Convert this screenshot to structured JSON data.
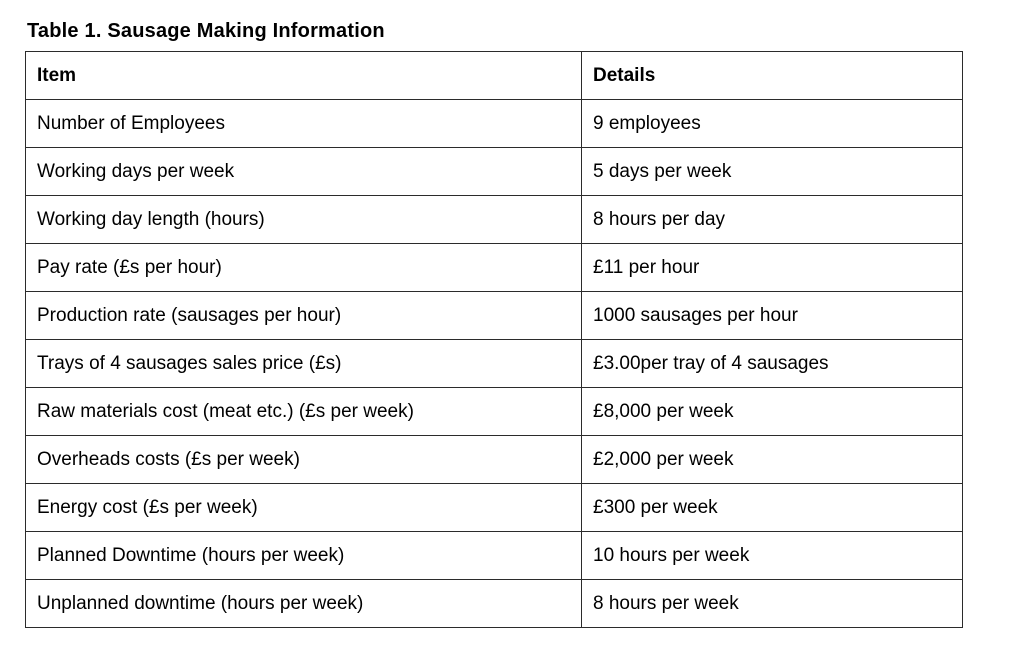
{
  "title": "Table 1. Sausage Making Information",
  "table": {
    "columns": [
      "Item",
      "Details"
    ],
    "rows": [
      {
        "item": "Number of Employees",
        "details": "9 employees"
      },
      {
        "item": "Working days per week",
        "details": "5 days per week"
      },
      {
        "item": "Working day length (hours)",
        "details": "8 hours per day"
      },
      {
        "item": "Pay rate (£s per hour)",
        "details": "£11 per hour"
      },
      {
        "item": "Production rate (sausages per hour)",
        "details": "1000 sausages per hour"
      },
      {
        "item": "Trays of 4 sausages sales price (£s)",
        "details": "£3.00per tray of 4 sausages"
      },
      {
        "item": "Raw materials cost (meat etc.) (£s per week)",
        "details": "£8,000 per week"
      },
      {
        "item": "Overheads costs (£s per week)",
        "details": "£2,000 per week"
      },
      {
        "item": "Energy cost (£s per week)",
        "details": "£300 per week"
      },
      {
        "item": "Planned Downtime (hours per week)",
        "details": "10 hours per week"
      },
      {
        "item": "Unplanned downtime (hours per week)",
        "details": "8 hours per week"
      }
    ]
  },
  "colors": {
    "text": "#000000",
    "border": "#2b2b2b",
    "background": "#ffffff"
  }
}
